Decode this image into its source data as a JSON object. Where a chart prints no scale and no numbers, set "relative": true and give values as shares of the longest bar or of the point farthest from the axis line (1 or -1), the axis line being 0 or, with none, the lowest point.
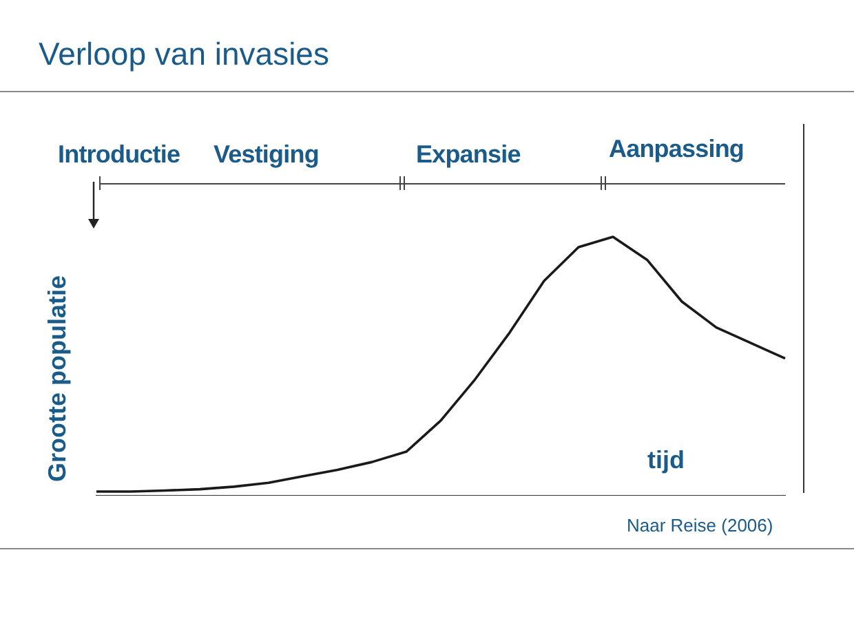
{
  "chart_data": {
    "type": "line",
    "title": "Verloop van invasies",
    "xlabel": "tijd",
    "ylabel": "Grootte populatie",
    "relative": true,
    "categories": [
      null,
      null,
      null,
      null,
      null,
      null,
      null,
      null,
      null,
      null,
      null,
      null,
      null,
      null,
      null,
      null,
      null,
      null,
      null,
      null,
      null
    ],
    "series": [
      {
        "color": "#1a1a1a",
        "values": [
          0.016,
          0.016,
          0.02,
          0.025,
          0.035,
          0.05,
          0.075,
          0.1,
          0.13,
          0.17,
          0.29,
          0.45,
          0.63,
          0.83,
          0.96,
          1,
          0.91,
          0.75,
          0.65,
          0.59,
          0.53
        ]
      }
    ],
    "annotations": [
      "Introductie",
      "Vestiging",
      "Expansie",
      "Aanpassing",
      "Naar Reise (2006)"
    ],
    "grid": false,
    "legend": false,
    "marker": "none"
  }
}
